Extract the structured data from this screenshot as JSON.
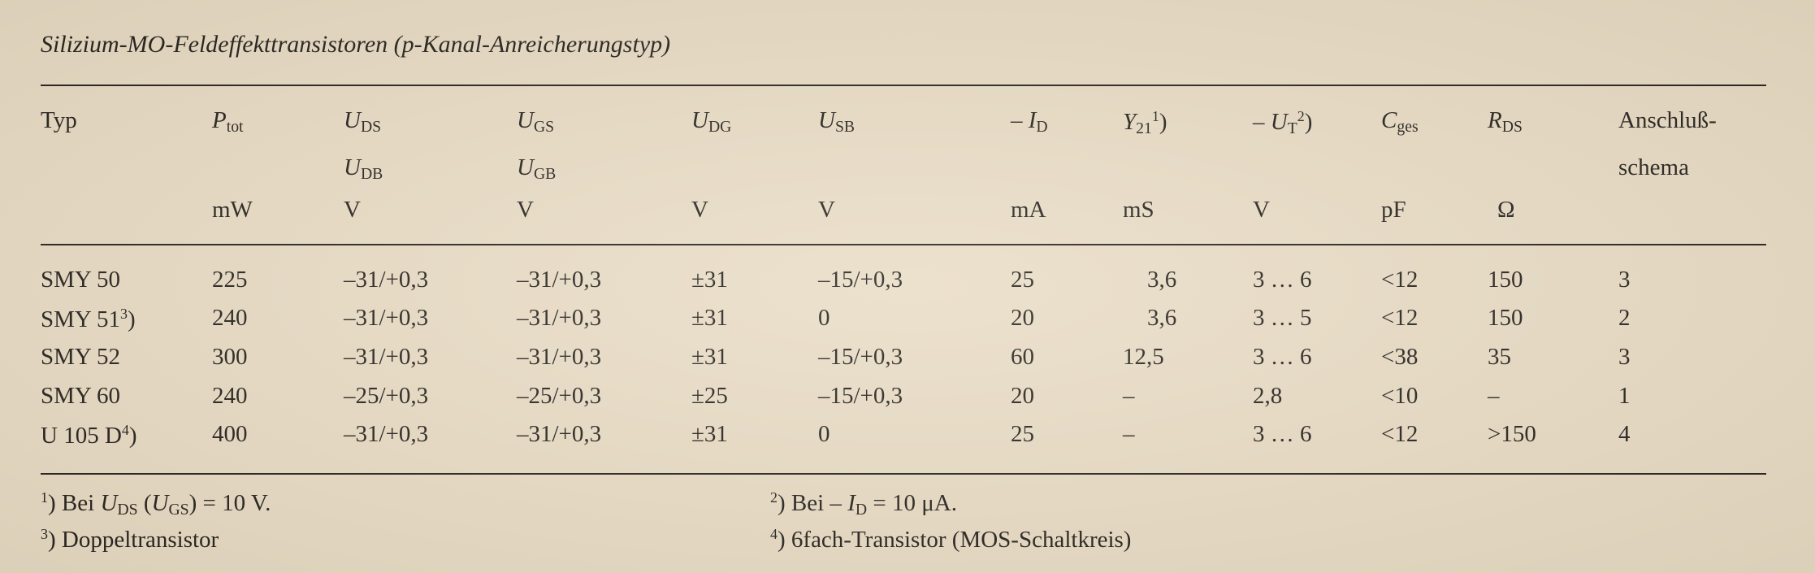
{
  "title": "Silizium-MO-Feldeffekttransistoren (p-Kanal-Anreicherungstyp)",
  "columns": [
    {
      "lines": [
        {
          "sym": "Typ",
          "italic": false
        }
      ],
      "unit": ""
    },
    {
      "lines": [
        {
          "sym": "P",
          "sub": "tot",
          "italic": true
        }
      ],
      "unit": "mW"
    },
    {
      "lines": [
        {
          "sym": "U",
          "sub": "DS",
          "italic": true
        },
        {
          "sym": "U",
          "sub": "DB",
          "italic": true
        }
      ],
      "unit": "V"
    },
    {
      "lines": [
        {
          "sym": "U",
          "sub": "GS",
          "italic": true
        },
        {
          "sym": "U",
          "sub": "GB",
          "italic": true
        }
      ],
      "unit": "V"
    },
    {
      "lines": [
        {
          "sym": "U",
          "sub": "DG",
          "italic": true
        }
      ],
      "unit": "V"
    },
    {
      "lines": [
        {
          "sym": "U",
          "sub": "SB",
          "italic": true
        }
      ],
      "unit": "V"
    },
    {
      "lines": [
        {
          "pre": "– ",
          "sym": "I",
          "sub": "D",
          "italic": true
        }
      ],
      "unit": "mA"
    },
    {
      "lines": [
        {
          "sym": "Y",
          "sub": "21",
          "sup": "1",
          "post": ")",
          "italic": true
        }
      ],
      "unit": "mS"
    },
    {
      "lines": [
        {
          "pre": "– ",
          "sym": "U",
          "sub": "T",
          "sup": "2",
          "post": ")",
          "italic": true
        }
      ],
      "unit": "V"
    },
    {
      "lines": [
        {
          "sym": "C",
          "sub": "ges",
          "italic": true
        }
      ],
      "unit": "pF"
    },
    {
      "lines": [
        {
          "sym": "R",
          "sub": "DS",
          "italic": true
        }
      ],
      "unit": "Ω"
    },
    {
      "lines": [
        {
          "sym": "Anschluß-",
          "italic": false
        },
        {
          "sym": "schema",
          "italic": false
        }
      ],
      "unit": ""
    }
  ],
  "rows": [
    {
      "typ": "SMY 50",
      "typ_sup": "",
      "cells": [
        "225",
        "–31/+0,3",
        "–31/+0,3",
        "±31",
        "–15/+0,3",
        "25",
        "3,6",
        "3 … 6",
        "<12",
        "150",
        "3"
      ]
    },
    {
      "typ": "SMY 51",
      "typ_sup": "3",
      "cells": [
        "240",
        "–31/+0,3",
        "–31/+0,3",
        "±31",
        "0",
        "20",
        "3,6",
        "3 … 5",
        "<12",
        "150",
        "2"
      ]
    },
    {
      "typ": "SMY 52",
      "typ_sup": "",
      "cells": [
        "300",
        "–31/+0,3",
        "–31/+0,3",
        "±31",
        "–15/+0,3",
        "60",
        "12,5",
        "3 … 6",
        "<38",
        "35",
        "3"
      ]
    },
    {
      "typ": "SMY 60",
      "typ_sup": "",
      "cells": [
        "240",
        "–25/+0,3",
        "–25/+0,3",
        "±25",
        "–15/+0,3",
        "20",
        "–",
        "2,8",
        "<10",
        "–",
        "1"
      ]
    },
    {
      "typ": "U 105 D",
      "typ_sup": "4",
      "cells": [
        "400",
        "–31/+0,3",
        "–31/+0,3",
        "±31",
        "0",
        "25",
        "–",
        "3 … 6",
        "<12",
        ">150",
        "4"
      ]
    }
  ],
  "footnotes": [
    {
      "mark": "1",
      "parts": [
        {
          "t": "Bei "
        },
        {
          "t": "U",
          "i": true
        },
        {
          "sub": "DS"
        },
        {
          "t": " ("
        },
        {
          "t": "U",
          "i": true
        },
        {
          "sub": "GS"
        },
        {
          "t": ") = 10 V."
        }
      ]
    },
    {
      "mark": "2",
      "parts": [
        {
          "t": "Bei – "
        },
        {
          "t": "I",
          "i": true
        },
        {
          "sub": "D"
        },
        {
          "t": " = 10 μA."
        }
      ]
    },
    {
      "mark": "3",
      "parts": [
        {
          "t": "Doppeltransistor"
        }
      ]
    },
    {
      "mark": "4",
      "parts": [
        {
          "t": "6fach-Transistor (MOS-Schaltkreis)"
        }
      ]
    }
  ]
}
